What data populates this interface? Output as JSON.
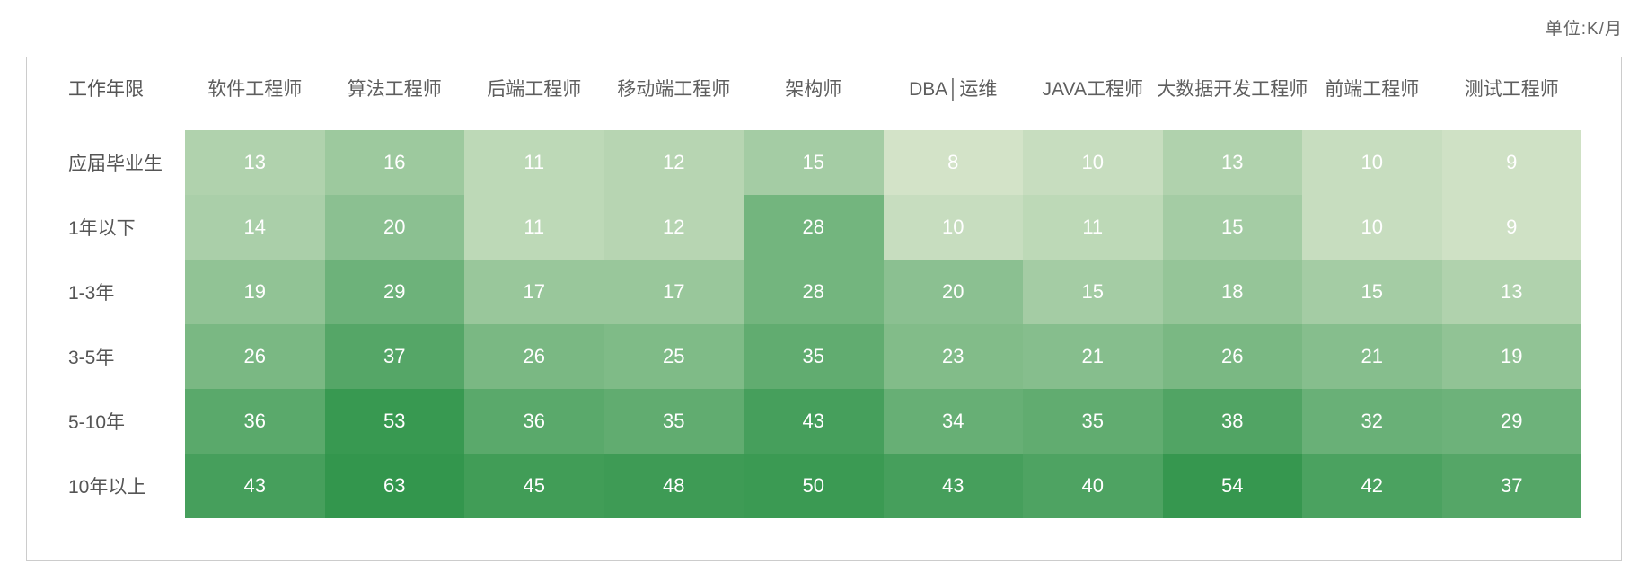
{
  "unit_label": "单位:K/月",
  "colors": {
    "heat_low": "#d3e3c8",
    "heat_high": "#33964d",
    "panel_border": "#cccccc",
    "header_text": "#5e5e5e",
    "row_label_text": "#555555",
    "cell_text": "#ffffff"
  },
  "chart_data": {
    "type": "heatmap",
    "title": "",
    "unit": "K/月",
    "corner_label": "工作年限",
    "columns": [
      "软件工程师",
      "算法工程师",
      "后端工程师",
      "移动端工程师",
      "架构师",
      "DBA│运维",
      "JAVA工程师",
      "大数据开发工程师",
      "前端工程师",
      "测试工程师"
    ],
    "rows": [
      {
        "label": "应届毕业生",
        "values": [
          13,
          16,
          11,
          12,
          15,
          8,
          10,
          13,
          10,
          9
        ]
      },
      {
        "label": "1年以下",
        "values": [
          14,
          20,
          11,
          12,
          28,
          10,
          11,
          15,
          10,
          9
        ]
      },
      {
        "label": "1-3年",
        "values": [
          19,
          29,
          17,
          17,
          28,
          20,
          15,
          18,
          15,
          13
        ]
      },
      {
        "label": "3-5年",
        "values": [
          26,
          37,
          26,
          25,
          35,
          23,
          21,
          26,
          21,
          19
        ]
      },
      {
        "label": "5-10年",
        "values": [
          36,
          53,
          36,
          35,
          43,
          34,
          35,
          38,
          32,
          29
        ]
      },
      {
        "label": "10年以上",
        "values": [
          43,
          63,
          45,
          48,
          50,
          43,
          40,
          54,
          42,
          37
        ]
      }
    ],
    "value_range": [
      8,
      63
    ],
    "color_scale": "rank-percentile, light heat_low to dark heat_high",
    "legend": "none",
    "grid": "off"
  }
}
